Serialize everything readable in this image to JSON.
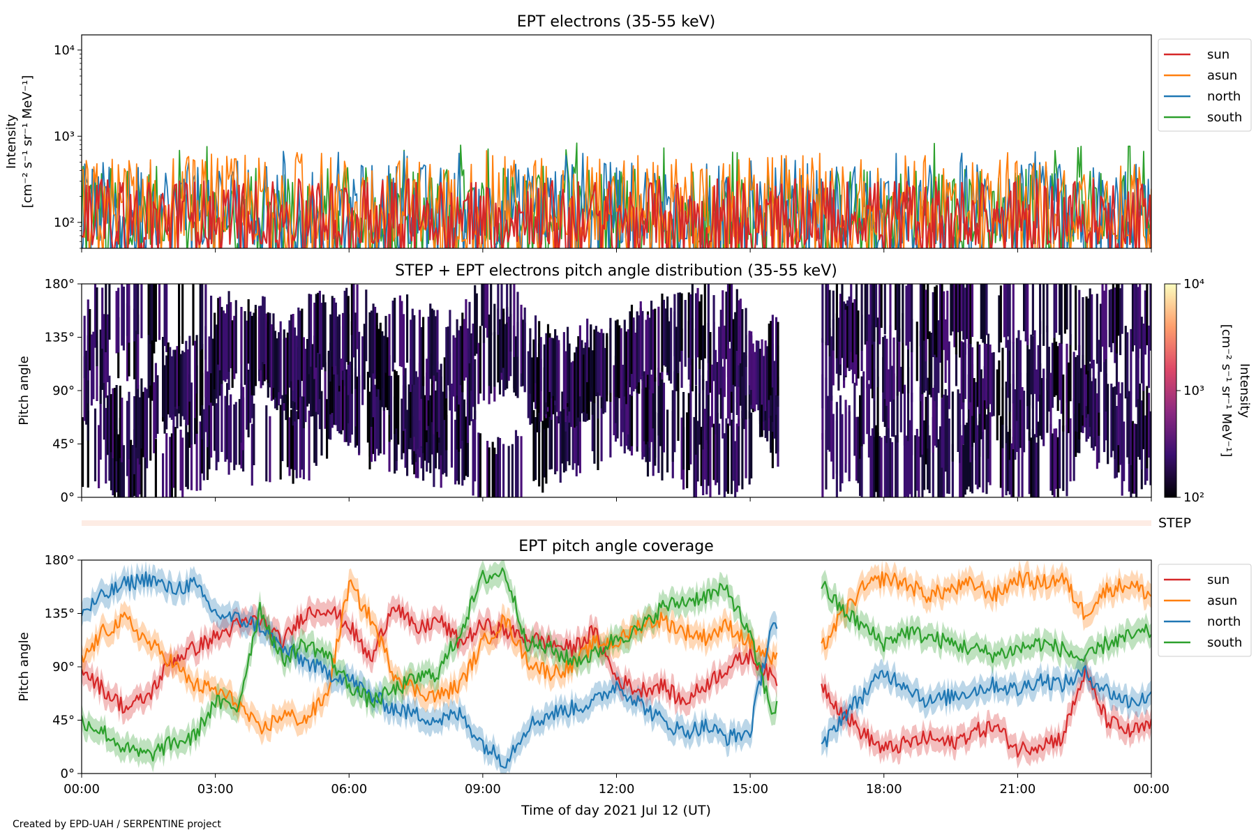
{
  "colors": {
    "sun": "#d62728",
    "asun": "#ff7f0e",
    "north": "#1f77b4",
    "south": "#2ca02c",
    "step_band": "#fdece4",
    "colormap": [
      "#000004",
      "#3b0f70",
      "#8c2981",
      "#de4968",
      "#fe9f6d",
      "#fcfdbf"
    ]
  },
  "credit": "Created by EPD-UAH / SERPENTINE project",
  "chart_data": [
    {
      "type": "line",
      "title": "EPT electrons (35-55 keV)",
      "ylabel_line1": "Intensity",
      "ylabel_line2": "[cm⁻² s⁻¹ sr⁻¹ MeV⁻¹]",
      "yscale": "log",
      "ylim": [
        50,
        15000
      ],
      "yticks": [
        {
          "value": 100,
          "label": "10²"
        },
        {
          "value": 1000,
          "label": "10³"
        },
        {
          "value": 10000,
          "label": "10⁴"
        }
      ],
      "xlim": [
        "00:00",
        "24:00"
      ],
      "legend": {
        "placement": "outside right",
        "entries": [
          "sun",
          "asun",
          "north",
          "south"
        ]
      },
      "series_summary": [
        {
          "name": "sun",
          "typical_range": [
            55,
            320
          ],
          "max": 330
        },
        {
          "name": "asun",
          "typical_range": [
            60,
            600
          ],
          "max": 720
        },
        {
          "name": "north",
          "typical_range": [
            55,
            500
          ],
          "max": 680
        },
        {
          "name": "south",
          "typical_range": [
            55,
            450
          ],
          "max": 840
        }
      ]
    },
    {
      "type": "heatmap",
      "title": "STEP + EPT electrons pitch angle distribution (35-55 keV)",
      "ylabel": "Pitch angle",
      "ylim": [
        0,
        180
      ],
      "yticks": [
        "0°",
        "45°",
        "90°",
        "135°",
        "180°"
      ],
      "xlim": [
        "00:00",
        "24:00"
      ],
      "colorbar": {
        "label_line1": "Intensity",
        "label_line2": "[cm⁻² s⁻¹ sr⁻¹ MeV⁻¹]",
        "scale": "log",
        "range": [
          100,
          10000
        ],
        "ticks": [
          "10²",
          "10³",
          "10⁴"
        ]
      },
      "data_gap": [
        "15:37",
        "16:35"
      ],
      "step_label": "STEP",
      "note": "observed intensities near 10² (dark purple), bands at pitch angles of each telescope"
    },
    {
      "type": "line",
      "title": "EPT pitch angle coverage",
      "ylabel": "Pitch angle",
      "xlabel": "Time of day 2021 Jul 12 (UT)",
      "ylim": [
        0,
        180
      ],
      "yticks": [
        "0°",
        "45°",
        "90°",
        "135°",
        "180°"
      ],
      "xticks": [
        "00:00",
        "03:00",
        "06:00",
        "09:00",
        "12:00",
        "15:00",
        "18:00",
        "21:00",
        "00:00"
      ],
      "legend": {
        "placement": "outside right",
        "entries": [
          "sun",
          "asun",
          "north",
          "south"
        ]
      },
      "data_gap": [
        "15:37",
        "16:35"
      ],
      "x_hours": [
        0,
        0.5,
        1,
        1.5,
        2,
        2.5,
        3,
        3.5,
        4,
        4.5,
        5,
        5.5,
        6,
        6.5,
        7,
        7.5,
        8,
        8.5,
        9,
        9.5,
        10,
        10.5,
        11,
        11.5,
        12,
        12.5,
        13,
        13.5,
        14,
        14.5,
        15,
        15.5,
        16.6,
        17,
        17.5,
        18,
        18.5,
        19,
        19.5,
        20,
        20.5,
        21,
        21.5,
        22,
        22.5,
        23,
        23.5,
        24
      ],
      "series": [
        {
          "name": "sun",
          "values": [
            90,
            70,
            55,
            65,
            95,
            105,
            115,
            125,
            130,
            110,
            135,
            140,
            125,
            95,
            145,
            120,
            130,
            110,
            125,
            120,
            115,
            110,
            105,
            120,
            80,
            70,
            75,
            60,
            75,
            90,
            100,
            80,
            75,
            55,
            35,
            20,
            25,
            30,
            25,
            35,
            40,
            20,
            25,
            30,
            85,
            45,
            35,
            40
          ]
        },
        {
          "name": "asun",
          "values": [
            95,
            120,
            130,
            110,
            95,
            75,
            70,
            60,
            35,
            50,
            45,
            65,
            160,
            130,
            85,
            70,
            65,
            75,
            110,
            130,
            95,
            85,
            90,
            110,
            110,
            125,
            130,
            120,
            115,
            125,
            110,
            95,
            105,
            130,
            155,
            165,
            160,
            150,
            155,
            160,
            150,
            165,
            160,
            165,
            135,
            155,
            160,
            150
          ]
        },
        {
          "name": "north",
          "values": [
            135,
            150,
            160,
            165,
            155,
            160,
            135,
            130,
            125,
            105,
            95,
            85,
            80,
            65,
            55,
            50,
            45,
            50,
            25,
            10,
            40,
            50,
            55,
            60,
            75,
            60,
            45,
            35,
            40,
            30,
            35,
            130,
            20,
            45,
            65,
            85,
            75,
            60,
            65,
            70,
            75,
            70,
            80,
            75,
            85,
            70,
            60,
            65
          ]
        },
        {
          "name": "south",
          "values": [
            45,
            35,
            20,
            15,
            25,
            30,
            60,
            55,
            140,
            95,
            110,
            100,
            75,
            60,
            70,
            80,
            85,
            120,
            165,
            170,
            110,
            105,
            95,
            100,
            115,
            120,
            140,
            145,
            150,
            155,
            115,
            50,
            160,
            140,
            125,
            110,
            120,
            115,
            110,
            105,
            100,
            105,
            110,
            105,
            95,
            110,
            115,
            120
          ]
        }
      ]
    }
  ]
}
